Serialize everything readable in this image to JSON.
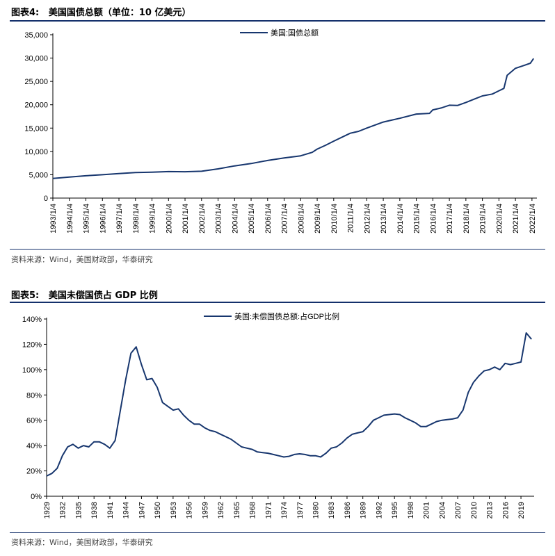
{
  "figures": [
    {
      "title": "图表4:   美国国债总额（单位：10 亿美元）",
      "source": "资料来源：Wind，美国财政部，华泰研究"
    },
    {
      "title": "图表5:   美国未偿国债占 GDP 比例",
      "source": "资料来源：Wind，美国财政部，华泰研究"
    }
  ],
  "chart_data": [
    {
      "type": "line",
      "title": "",
      "xlabel": "",
      "ylabel": "",
      "categories": [
        "1993/1/4",
        "1994/1/4",
        "1995/1/4",
        "1996/1/4",
        "1997/1/4",
        "1998/1/4",
        "1999/1/4",
        "2000/1/4",
        "2001/1/4",
        "2002/1/4",
        "2003/1/4",
        "2004/1/4",
        "2005/1/4",
        "2006/1/4",
        "2007/1/4",
        "2008/1/4",
        "2009/1/4",
        "2010/1/4",
        "2011/1/4",
        "2012/1/4",
        "2013/1/4",
        "2014/1/4",
        "2015/1/4",
        "2016/1/4",
        "2017/1/4",
        "2018/1/4",
        "2019/1/4",
        "2020/1/4",
        "2021/1/4",
        "2022/1/4"
      ],
      "ylim": [
        0,
        35000
      ],
      "yticks": [
        "0",
        "5,000",
        "10,000",
        "15,000",
        "20,000",
        "25,000",
        "30,000",
        "35,000"
      ],
      "grid": false,
      "legend_position": "top-center",
      "color": "#17366e",
      "series": [
        {
          "name": "美国:国债总额",
          "points": [
            [
              1993.0,
              4200
            ],
            [
              1994.0,
              4500
            ],
            [
              1995.0,
              4780
            ],
            [
              1996.0,
              5000
            ],
            [
              1997.0,
              5250
            ],
            [
              1998.0,
              5460
            ],
            [
              1999.0,
              5560
            ],
            [
              2000.0,
              5680
            ],
            [
              2001.0,
              5650
            ],
            [
              2002.0,
              5750
            ],
            [
              2003.0,
              6250
            ],
            [
              2004.0,
              6900
            ],
            [
              2005.0,
              7400
            ],
            [
              2006.0,
              8050
            ],
            [
              2007.0,
              8600
            ],
            [
              2008.0,
              9050
            ],
            [
              2008.7,
              9800
            ],
            [
              2009.0,
              10500
            ],
            [
              2009.5,
              11300
            ],
            [
              2010.0,
              12200
            ],
            [
              2011.0,
              13900
            ],
            [
              2011.5,
              14300
            ],
            [
              2012.0,
              15000
            ],
            [
              2013.0,
              16300
            ],
            [
              2013.5,
              16700
            ],
            [
              2014.0,
              17100
            ],
            [
              2015.0,
              18000
            ],
            [
              2015.8,
              18150
            ],
            [
              2016.0,
              18900
            ],
            [
              2016.5,
              19300
            ],
            [
              2017.0,
              19900
            ],
            [
              2017.5,
              19850
            ],
            [
              2018.0,
              20500
            ],
            [
              2018.5,
              21200
            ],
            [
              2019.0,
              21900
            ],
            [
              2019.6,
              22300
            ],
            [
              2020.0,
              23000
            ],
            [
              2020.3,
              23500
            ],
            [
              2020.5,
              26300
            ],
            [
              2021.0,
              27800
            ],
            [
              2021.5,
              28400
            ],
            [
              2021.9,
              28900
            ],
            [
              2022.1,
              29900
            ]
          ]
        }
      ]
    },
    {
      "type": "line",
      "title": "",
      "xlabel": "",
      "ylabel": "",
      "categories": [
        "1929",
        "1932",
        "1935",
        "1938",
        "1941",
        "1944",
        "1947",
        "1950",
        "1953",
        "1956",
        "1959",
        "1962",
        "1965",
        "1968",
        "1971",
        "1974",
        "1977",
        "1980",
        "1983",
        "1986",
        "1989",
        "1992",
        "1995",
        "1998",
        "2001",
        "2004",
        "2007",
        "2010",
        "2013",
        "2016",
        "2019"
      ],
      "ylim": [
        0,
        140
      ],
      "yticks": [
        "0%",
        "20%",
        "40%",
        "60%",
        "80%",
        "100%",
        "120%",
        "140%"
      ],
      "grid": false,
      "legend_position": "top-center",
      "color": "#17366e",
      "series": [
        {
          "name": "美国:未偿国债总额:占GDP比例",
          "x": [
            1929,
            1930,
            1931,
            1932,
            1933,
            1934,
            1935,
            1936,
            1937,
            1938,
            1939,
            1940,
            1941,
            1942,
            1943,
            1944,
            1945,
            1946,
            1947,
            1948,
            1949,
            1950,
            1951,
            1952,
            1953,
            1954,
            1955,
            1956,
            1957,
            1958,
            1959,
            1960,
            1961,
            1962,
            1963,
            1964,
            1965,
            1966,
            1967,
            1968,
            1969,
            1970,
            1971,
            1972,
            1973,
            1974,
            1975,
            1976,
            1977,
            1978,
            1979,
            1980,
            1981,
            1982,
            1983,
            1984,
            1985,
            1986,
            1987,
            1988,
            1989,
            1990,
            1991,
            1992,
            1993,
            1994,
            1995,
            1996,
            1997,
            1998,
            1999,
            2000,
            2001,
            2002,
            2003,
            2004,
            2005,
            2006,
            2007,
            2008,
            2009,
            2010,
            2011,
            2012,
            2013,
            2014,
            2015,
            2016,
            2017,
            2018,
            2019,
            2020,
            2021
          ],
          "values": [
            16,
            18,
            22,
            32,
            39,
            41,
            38,
            40,
            39,
            43,
            43,
            41,
            38,
            44,
            68,
            92,
            113,
            118,
            104,
            92,
            93,
            86,
            74,
            71,
            68,
            69,
            64,
            60,
            57,
            57,
            54,
            52,
            51,
            49,
            47,
            45,
            42,
            39,
            38,
            37,
            35,
            34.5,
            34,
            33,
            32,
            31,
            31.5,
            33,
            33.5,
            33,
            32,
            32,
            31,
            34,
            38,
            39,
            42,
            46,
            49,
            50,
            51,
            55,
            60,
            62,
            64,
            64.5,
            65,
            64.5,
            62,
            60,
            58,
            55,
            55,
            57,
            59,
            60,
            60.5,
            61,
            62,
            68,
            82,
            90,
            95,
            99,
            100,
            102,
            100,
            105,
            104,
            105,
            106,
            129,
            124
          ]
        }
      ]
    }
  ]
}
